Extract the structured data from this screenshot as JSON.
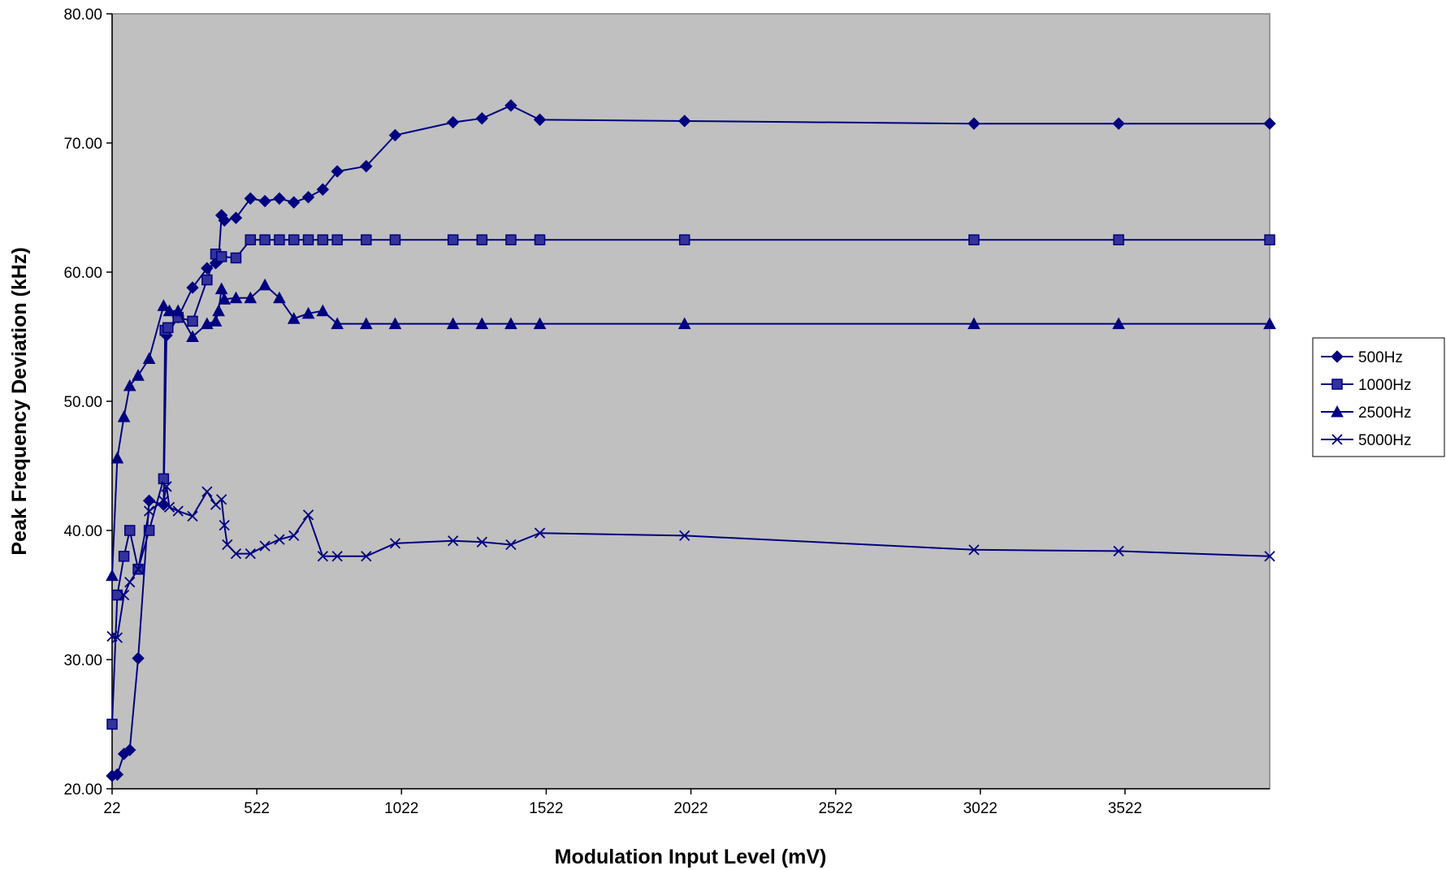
{
  "chart_data": {
    "type": "line",
    "title": "",
    "xlabel": "Modulation Input Level (mV)",
    "ylabel": "Peak Frequency Deviation (kHz)",
    "xlim": [
      22,
      4022
    ],
    "ylim": [
      20,
      80
    ],
    "x_ticks": [
      22,
      522,
      1022,
      1522,
      2022,
      2522,
      3022,
      3522
    ],
    "y_ticks": [
      "20.00",
      "30.00",
      "40.00",
      "50.00",
      "60.00",
      "70.00",
      "80.00"
    ],
    "plot_background": "#c0c0c0",
    "series_color": "#000080",
    "marker_fill": "#333399",
    "legend_position": "right",
    "series": [
      {
        "name": "500Hz",
        "marker": "diamond",
        "points": [
          [
            22,
            21.0
          ],
          [
            40,
            21.1
          ],
          [
            63,
            22.7
          ],
          [
            83,
            23.0
          ],
          [
            112,
            30.1
          ],
          [
            150,
            42.3
          ],
          [
            200,
            42.0
          ],
          [
            210,
            55.1
          ],
          [
            250,
            56.5
          ],
          [
            300,
            58.8
          ],
          [
            350,
            60.3
          ],
          [
            380,
            60.7
          ],
          [
            390,
            60.9
          ],
          [
            400,
            64.4
          ],
          [
            410,
            64.0
          ],
          [
            450,
            64.2
          ],
          [
            500,
            65.7
          ],
          [
            550,
            65.5
          ],
          [
            600,
            65.7
          ],
          [
            650,
            65.4
          ],
          [
            700,
            65.8
          ],
          [
            750,
            66.4
          ],
          [
            800,
            67.8
          ],
          [
            900,
            68.2
          ],
          [
            1000,
            70.6
          ],
          [
            1200,
            71.6
          ],
          [
            1300,
            71.9
          ],
          [
            1400,
            72.9
          ],
          [
            1500,
            71.8
          ],
          [
            2000,
            71.7
          ],
          [
            3000,
            71.5
          ],
          [
            3500,
            71.5
          ],
          [
            4022,
            71.5
          ]
        ]
      },
      {
        "name": "1000Hz",
        "marker": "square",
        "points": [
          [
            22,
            25.0
          ],
          [
            40,
            35.0
          ],
          [
            63,
            38.0
          ],
          [
            83,
            40.0
          ],
          [
            112,
            37.0
          ],
          [
            150,
            40.0
          ],
          [
            200,
            44.0
          ],
          [
            205,
            55.5
          ],
          [
            215,
            55.7
          ],
          [
            250,
            56.5
          ],
          [
            300,
            56.2
          ],
          [
            350,
            59.4
          ],
          [
            380,
            61.4
          ],
          [
            400,
            61.2
          ],
          [
            450,
            61.1
          ],
          [
            500,
            62.5
          ],
          [
            550,
            62.5
          ],
          [
            600,
            62.5
          ],
          [
            650,
            62.5
          ],
          [
            700,
            62.5
          ],
          [
            750,
            62.5
          ],
          [
            800,
            62.5
          ],
          [
            900,
            62.5
          ],
          [
            1000,
            62.5
          ],
          [
            1200,
            62.5
          ],
          [
            1300,
            62.5
          ],
          [
            1400,
            62.5
          ],
          [
            1500,
            62.5
          ],
          [
            2000,
            62.5
          ],
          [
            3000,
            62.5
          ],
          [
            3500,
            62.5
          ],
          [
            4022,
            62.5
          ]
        ]
      },
      {
        "name": "2500Hz",
        "marker": "triangle",
        "points": [
          [
            22,
            36.5
          ],
          [
            40,
            45.6
          ],
          [
            63,
            48.8
          ],
          [
            83,
            51.2
          ],
          [
            112,
            52.0
          ],
          [
            150,
            53.3
          ],
          [
            200,
            57.4
          ],
          [
            220,
            57.0
          ],
          [
            250,
            57.0
          ],
          [
            300,
            55.0
          ],
          [
            350,
            56.0
          ],
          [
            380,
            56.2
          ],
          [
            390,
            57.0
          ],
          [
            400,
            58.7
          ],
          [
            410,
            57.9
          ],
          [
            450,
            58.0
          ],
          [
            500,
            58.0
          ],
          [
            550,
            59.0
          ],
          [
            600,
            58.0
          ],
          [
            650,
            56.4
          ],
          [
            700,
            56.8
          ],
          [
            750,
            57.0
          ],
          [
            800,
            56.0
          ],
          [
            900,
            56.0
          ],
          [
            1000,
            56.0
          ],
          [
            1200,
            56.0
          ],
          [
            1300,
            56.0
          ],
          [
            1400,
            56.0
          ],
          [
            1500,
            56.0
          ],
          [
            2000,
            56.0
          ],
          [
            3000,
            56.0
          ],
          [
            3500,
            56.0
          ],
          [
            4022,
            56.0
          ]
        ]
      },
      {
        "name": "5000Hz",
        "marker": "x",
        "points": [
          [
            22,
            31.8
          ],
          [
            40,
            31.7
          ],
          [
            63,
            35.0
          ],
          [
            83,
            36.0
          ],
          [
            112,
            37.0
          ],
          [
            150,
            41.5
          ],
          [
            200,
            42.3
          ],
          [
            210,
            43.4
          ],
          [
            220,
            41.8
          ],
          [
            250,
            41.5
          ],
          [
            300,
            41.1
          ],
          [
            350,
            43.0
          ],
          [
            380,
            42.0
          ],
          [
            400,
            42.4
          ],
          [
            410,
            40.4
          ],
          [
            420,
            38.9
          ],
          [
            450,
            38.2
          ],
          [
            500,
            38.2
          ],
          [
            550,
            38.8
          ],
          [
            600,
            39.3
          ],
          [
            650,
            39.6
          ],
          [
            700,
            41.2
          ],
          [
            750,
            38.0
          ],
          [
            800,
            38.0
          ],
          [
            900,
            38.0
          ],
          [
            1000,
            39.0
          ],
          [
            1200,
            39.2
          ],
          [
            1300,
            39.1
          ],
          [
            1400,
            38.9
          ],
          [
            1500,
            39.8
          ],
          [
            2000,
            39.6
          ],
          [
            3000,
            38.5
          ],
          [
            3500,
            38.4
          ],
          [
            4022,
            38.0
          ]
        ]
      }
    ]
  }
}
